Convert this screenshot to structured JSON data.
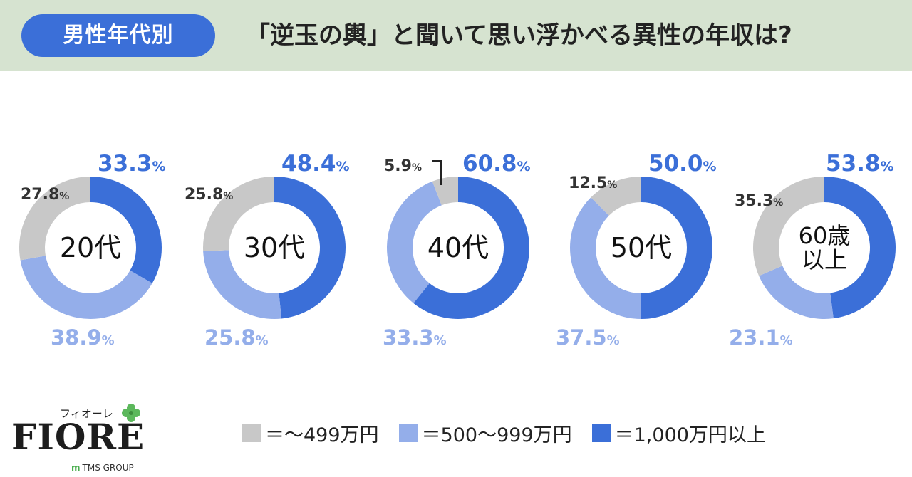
{
  "header": {
    "badge": "男性年代別",
    "title": "「逆玉の輿」と聞いて思い浮かべる異性の年収は?"
  },
  "colors": {
    "header_bg": "#d6e3d0",
    "badge_bg": "#3b6fd8",
    "low": "#c8c8c8",
    "mid": "#94aeea",
    "high": "#3b6fd8",
    "dark_label": "#333333"
  },
  "chart_data": {
    "type": "donut",
    "legend_position": "bottom",
    "categories": [
      "＝～499万円",
      "＝500～999万円",
      "＝1,000万円以上"
    ],
    "groups": [
      {
        "name": "20代",
        "values": [
          27.8,
          38.9,
          33.3
        ],
        "labels": [
          "27.8",
          "38.9",
          "33.3"
        ]
      },
      {
        "name": "30代",
        "values": [
          25.8,
          25.8,
          48.4
        ],
        "labels": [
          "25.8",
          "25.8",
          "48.4"
        ]
      },
      {
        "name": "40代",
        "values": [
          5.9,
          33.3,
          60.8
        ],
        "labels": [
          "5.9",
          "33.3",
          "60.8"
        ]
      },
      {
        "name": "50代",
        "values": [
          12.5,
          37.5,
          50.0
        ],
        "labels": [
          "12.5",
          "37.5",
          "50.0"
        ]
      },
      {
        "name": "60歳\n以上",
        "values": [
          35.3,
          23.1,
          53.8
        ],
        "labels": [
          "35.3",
          "23.1",
          "53.8"
        ]
      }
    ],
    "unit": "%"
  },
  "legend": {
    "items": [
      {
        "label": "＝～499万円",
        "color": "#c8c8c8"
      },
      {
        "label": "＝500～999万円",
        "color": "#94aeea"
      },
      {
        "label": "＝1,000万円以上",
        "color": "#3b6fd8"
      }
    ]
  },
  "logo": {
    "kana": "フィオーレ",
    "word": "FIORE",
    "group_mark": "m",
    "group": "TMS GROUP"
  }
}
